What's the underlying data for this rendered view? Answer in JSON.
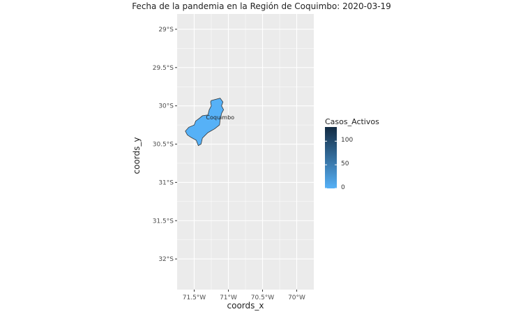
{
  "title": "Fecha de la pandemia en la Región de Coquimbo: 2020-03-19",
  "xlabel": "coords_x",
  "ylabel": "coords_y",
  "colors": {
    "panel_bg": "#ebebeb",
    "grid": "#ffffff",
    "fill_region": "#56b1f7",
    "outline": "#333333",
    "legend_low": "#56b1f7",
    "legend_high": "#132b43"
  },
  "chart_data": {
    "type": "map",
    "x_ticks": [
      {
        "value": -71.5,
        "label": "71.5°W"
      },
      {
        "value": -71.0,
        "label": "71°W"
      },
      {
        "value": -70.5,
        "label": "70.5°W"
      },
      {
        "value": -70.0,
        "label": "70°W"
      }
    ],
    "y_ticks": [
      {
        "value": -29.0,
        "label": "29°S"
      },
      {
        "value": -29.5,
        "label": "29.5°S"
      },
      {
        "value": -30.0,
        "label": "30°S"
      },
      {
        "value": -30.5,
        "label": "30.5°S"
      },
      {
        "value": -31.0,
        "label": "31°S"
      },
      {
        "value": -31.5,
        "label": "31.5°S"
      },
      {
        "value": -32.0,
        "label": "32°S"
      }
    ],
    "xlim": [
      -71.75,
      -69.75
    ],
    "ylim": [
      -32.4,
      -28.8
    ],
    "region": {
      "name": "Coquimbo",
      "casos_activos": 0,
      "label_lon": -71.12,
      "label_lat": -30.15,
      "outline": [
        [
          -71.25,
          -29.93
        ],
        [
          -71.12,
          -29.9
        ],
        [
          -71.08,
          -29.95
        ],
        [
          -71.1,
          -30.0
        ],
        [
          -71.07,
          -30.05
        ],
        [
          -71.1,
          -30.1
        ],
        [
          -71.12,
          -30.18
        ],
        [
          -71.13,
          -30.25
        ],
        [
          -71.2,
          -30.3
        ],
        [
          -71.3,
          -30.35
        ],
        [
          -71.38,
          -30.42
        ],
        [
          -71.4,
          -30.5
        ],
        [
          -71.44,
          -30.52
        ],
        [
          -71.47,
          -30.45
        ],
        [
          -71.55,
          -30.41
        ],
        [
          -71.6,
          -30.38
        ],
        [
          -71.63,
          -30.33
        ],
        [
          -71.58,
          -30.28
        ],
        [
          -71.5,
          -30.25
        ],
        [
          -71.48,
          -30.2
        ],
        [
          -71.42,
          -30.16
        ],
        [
          -71.38,
          -30.13
        ],
        [
          -71.3,
          -30.12
        ],
        [
          -71.28,
          -30.05
        ],
        [
          -71.25,
          -30.0
        ],
        [
          -71.26,
          -29.95
        ]
      ]
    },
    "legend": {
      "title": "Casos_Activos",
      "min": 0,
      "max": 130,
      "ticks": [
        {
          "value": 0,
          "label": "0"
        },
        {
          "value": 50,
          "label": "50"
        },
        {
          "value": 100,
          "label": "100"
        }
      ]
    }
  }
}
